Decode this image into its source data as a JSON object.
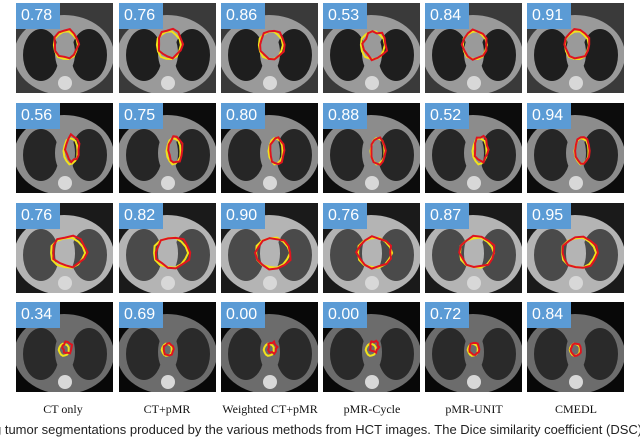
{
  "columns": [
    "CT only",
    "CT+pMR",
    "Weighted CT+pMR",
    "pMR-Cycle",
    "pMR-UNIT",
    "CMEDL"
  ],
  "rows": [
    {
      "scores": [
        "0.78",
        "0.76",
        "0.86",
        "0.53",
        "0.84",
        "0.91"
      ]
    },
    {
      "scores": [
        "0.56",
        "0.75",
        "0.80",
        "0.88",
        "0.52",
        "0.94"
      ]
    },
    {
      "scores": [
        "0.76",
        "0.82",
        "0.90",
        "0.76",
        "0.87",
        "0.95"
      ]
    },
    {
      "scores": [
        "0.34",
        "0.69",
        "0.00",
        "0.00",
        "0.72",
        "0.84"
      ]
    }
  ],
  "contour_colors": {
    "ground_truth": "#f2e21a",
    "prediction": "#e0141e"
  },
  "badge_color": "#5b9bd5",
  "caption": "g tumor segmentations produced by the various methods from HCT images. The Dice similarity coefficient (DSC) is"
}
